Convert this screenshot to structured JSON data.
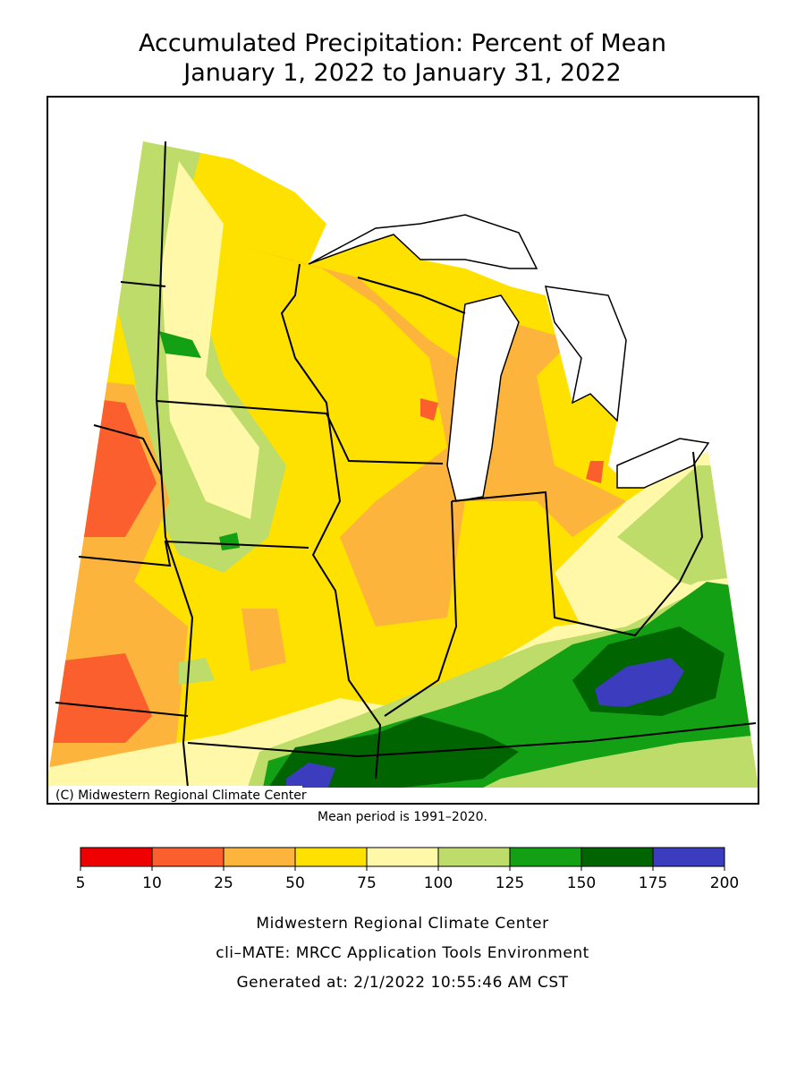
{
  "header": {
    "title": "Accumulated Precipitation: Percent of Mean",
    "subtitle": "January 1, 2022 to January 31, 2022"
  },
  "map": {
    "credit": "(C) Midwestern Regional Climate Center",
    "note": "Mean period is 1991–2020."
  },
  "legend": {
    "boundaries": [
      5,
      10,
      25,
      50,
      75,
      100,
      125,
      150,
      175,
      200
    ],
    "colors": [
      "#ee0000",
      "#fa5f2d",
      "#fdb43c",
      "#ffe100",
      "#fff8a8",
      "#bedc6a",
      "#14a014",
      "#006400",
      "#3c3cbe"
    ]
  },
  "footer": {
    "lines": [
      "Midwestern Regional Climate Center",
      "cli–MATE: MRCC Application Tools Environment",
      "Generated at: 2/1/2022 10:55:46 AM CST"
    ]
  }
}
